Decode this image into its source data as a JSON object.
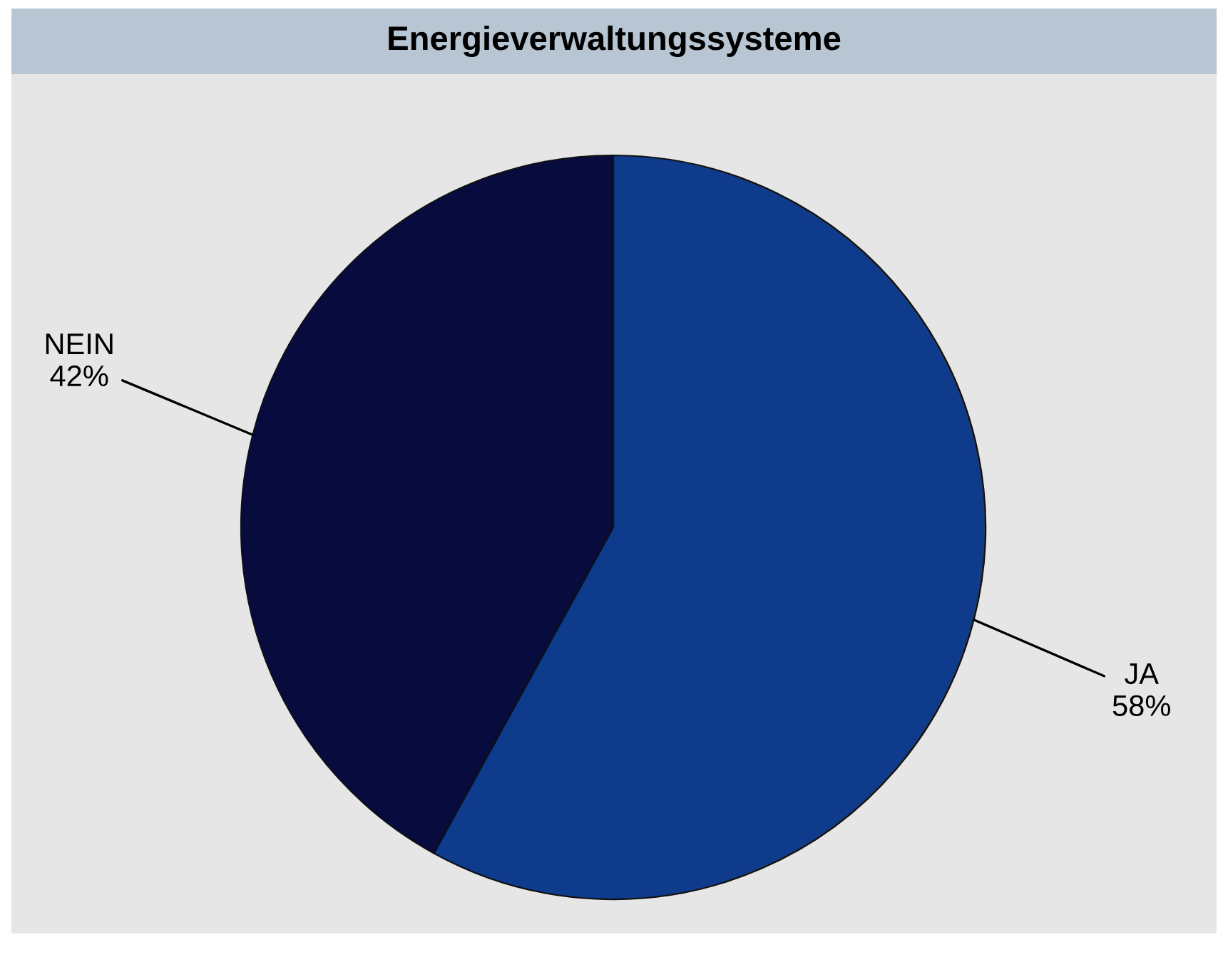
{
  "chart_data": {
    "type": "pie",
    "title": "Energieverwaltungssysteme",
    "categories": [
      "JA",
      "NEIN"
    ],
    "values": [
      58,
      42
    ],
    "colors": [
      "#0f3b8c",
      "#070b3d"
    ],
    "value_labels": [
      "58%",
      "42%"
    ]
  }
}
